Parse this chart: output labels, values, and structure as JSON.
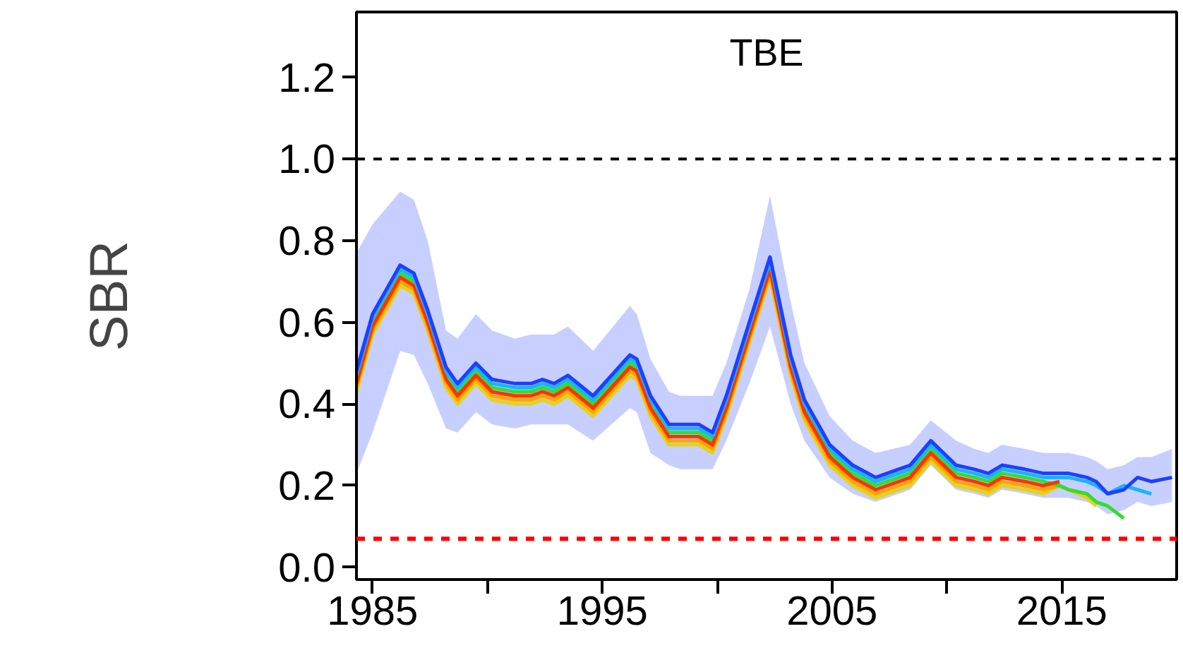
{
  "chart_data": {
    "type": "line",
    "title": "TBE",
    "ylabel": "SBR",
    "x": [
      1984.3,
      1985,
      1986.2,
      1986.8,
      1987.4,
      1988.2,
      1988.7,
      1989.5,
      1990.2,
      1991.2,
      1991.9,
      1992.4,
      1992.9,
      1993.5,
      1994.6,
      1996.2,
      1996.5,
      1997.1,
      1997.9,
      1998.4,
      1999.2,
      1999.8,
      2000.4,
      2001.4,
      2002.3,
      2003.2,
      2003.8,
      2004.9,
      2005.9,
      2006.9,
      2008.4,
      2009.3,
      2010.4,
      2011.2,
      2011.8,
      2012.4,
      2013.4,
      2014.2,
      2014.9,
      2015.3,
      2016.1,
      2016.5,
      2017,
      2017.7,
      2018.3,
      2018.9,
      2019.8
    ],
    "series": [
      {
        "color": "#e6d21e",
        "values": [
          0.43,
          0.57,
          0.69,
          0.67,
          0.58,
          0.44,
          0.4,
          0.45,
          0.41,
          0.4,
          0.4,
          0.41,
          0.4,
          0.42,
          0.37,
          0.47,
          0.46,
          0.37,
          0.3,
          0.3,
          0.3,
          0.28,
          0.37,
          0.55,
          0.71,
          0.47,
          0.36,
          0.25,
          0.2,
          0.17,
          0.2,
          0.26,
          0.2,
          0.19,
          0.18,
          0.2,
          0.19,
          0.18,
          0.2,
          0.19,
          0.17,
          0.15,
          null,
          null,
          null,
          null,
          null
        ]
      },
      {
        "color": "#ffa500",
        "values": [
          0.44,
          0.58,
          0.7,
          0.68,
          0.59,
          0.45,
          0.41,
          0.46,
          0.42,
          0.41,
          0.41,
          0.42,
          0.41,
          0.43,
          0.38,
          0.48,
          0.47,
          0.38,
          0.31,
          0.31,
          0.31,
          0.29,
          0.38,
          0.56,
          0.72,
          0.48,
          0.37,
          0.26,
          0.21,
          0.18,
          0.21,
          0.27,
          0.21,
          0.2,
          0.19,
          0.21,
          0.2,
          0.19,
          0.2,
          0.19,
          null,
          null,
          null,
          null,
          null,
          null,
          null
        ]
      },
      {
        "color": "#33dd33",
        "values": [
          0.46,
          0.6,
          0.72,
          0.7,
          0.61,
          0.47,
          0.43,
          0.48,
          0.44,
          0.43,
          0.43,
          0.44,
          0.43,
          0.45,
          0.4,
          0.5,
          0.49,
          0.4,
          0.33,
          0.33,
          0.33,
          0.31,
          0.4,
          0.58,
          0.74,
          0.5,
          0.39,
          0.28,
          0.23,
          0.2,
          0.23,
          0.29,
          0.23,
          0.22,
          0.21,
          0.23,
          0.22,
          0.21,
          0.2,
          0.19,
          0.18,
          0.16,
          0.15,
          0.12,
          null,
          null,
          null
        ]
      },
      {
        "color": "#ff3300",
        "values": [
          0.45,
          0.59,
          0.71,
          0.69,
          0.6,
          0.46,
          0.42,
          0.47,
          0.43,
          0.42,
          0.42,
          0.43,
          0.42,
          0.44,
          0.39,
          0.49,
          0.48,
          0.39,
          0.32,
          0.32,
          0.32,
          0.3,
          0.39,
          0.57,
          0.73,
          0.49,
          0.38,
          0.27,
          0.22,
          0.19,
          0.22,
          0.28,
          0.22,
          0.21,
          0.2,
          0.22,
          0.21,
          0.2,
          0.21,
          null,
          null,
          null,
          null,
          null,
          null,
          null,
          null
        ]
      },
      {
        "color": "#19b4ff",
        "values": [
          0.47,
          0.61,
          0.73,
          0.71,
          0.62,
          0.48,
          0.44,
          0.49,
          0.45,
          0.44,
          0.44,
          0.45,
          0.44,
          0.46,
          0.41,
          0.51,
          0.5,
          0.41,
          0.34,
          0.34,
          0.34,
          0.32,
          0.41,
          0.59,
          0.75,
          0.51,
          0.4,
          0.29,
          0.24,
          0.21,
          0.24,
          0.3,
          0.24,
          0.23,
          0.22,
          0.24,
          0.23,
          0.22,
          0.22,
          0.22,
          0.21,
          0.2,
          0.18,
          0.2,
          0.19,
          0.18,
          null
        ]
      },
      {
        "color": "#1f3fff",
        "values": [
          0.48,
          0.62,
          0.74,
          0.72,
          0.63,
          0.49,
          0.45,
          0.5,
          0.46,
          0.45,
          0.45,
          0.46,
          0.45,
          0.47,
          0.42,
          0.52,
          0.51,
          0.42,
          0.35,
          0.35,
          0.35,
          0.33,
          0.42,
          0.6,
          0.76,
          0.52,
          0.41,
          0.3,
          0.25,
          0.22,
          0.25,
          0.31,
          0.25,
          0.24,
          0.23,
          0.25,
          0.24,
          0.23,
          0.23,
          0.23,
          0.22,
          0.21,
          0.18,
          0.19,
          0.22,
          0.21,
          0.22
        ],
        "upper": [
          0.77,
          0.84,
          0.92,
          0.9,
          0.8,
          0.58,
          0.56,
          0.62,
          0.58,
          0.56,
          0.57,
          0.57,
          0.57,
          0.59,
          0.53,
          0.64,
          0.62,
          0.51,
          0.43,
          0.42,
          0.42,
          0.42,
          0.5,
          0.68,
          0.91,
          0.65,
          0.5,
          0.37,
          0.31,
          0.28,
          0.3,
          0.36,
          0.31,
          0.29,
          0.28,
          0.3,
          0.29,
          0.28,
          0.28,
          0.28,
          0.27,
          0.26,
          0.24,
          0.25,
          0.27,
          0.27,
          0.29
        ],
        "lower": [
          0.23,
          0.33,
          0.53,
          0.52,
          0.45,
          0.34,
          0.33,
          0.38,
          0.35,
          0.34,
          0.35,
          0.35,
          0.35,
          0.35,
          0.31,
          0.39,
          0.38,
          0.28,
          0.25,
          0.24,
          0.24,
          0.24,
          0.31,
          0.45,
          0.59,
          0.4,
          0.31,
          0.22,
          0.18,
          0.16,
          0.19,
          0.25,
          0.19,
          0.18,
          0.17,
          0.19,
          0.18,
          0.17,
          0.17,
          0.17,
          0.16,
          0.15,
          0.13,
          0.14,
          0.16,
          0.15,
          0.16
        ]
      }
    ],
    "xlim": [
      1984.3,
      2020
    ],
    "xticks": [
      1985,
      {
        "value": 1990,
        "label": null
      },
      1995,
      {
        "value": 2000,
        "label": null
      },
      2005,
      {
        "value": 2010,
        "label": null
      },
      2015
    ],
    "ylim": [
      -0.03,
      1.36
    ],
    "yticks": [
      {
        "value": 0,
        "label": "0.0"
      },
      0.2,
      0.4,
      0.6,
      0.8,
      {
        "value": 1,
        "label": "1.0"
      },
      1.2
    ],
    "ref_lines": [
      {
        "axis": "y",
        "value": 1.0,
        "color": "#000000",
        "line_style": "dashed"
      },
      {
        "axis": "y",
        "value": 0.07,
        "color": "#ff0000",
        "line_style": "dashed"
      }
    ],
    "grid": false,
    "marker": "none",
    "line_style": "solid"
  }
}
